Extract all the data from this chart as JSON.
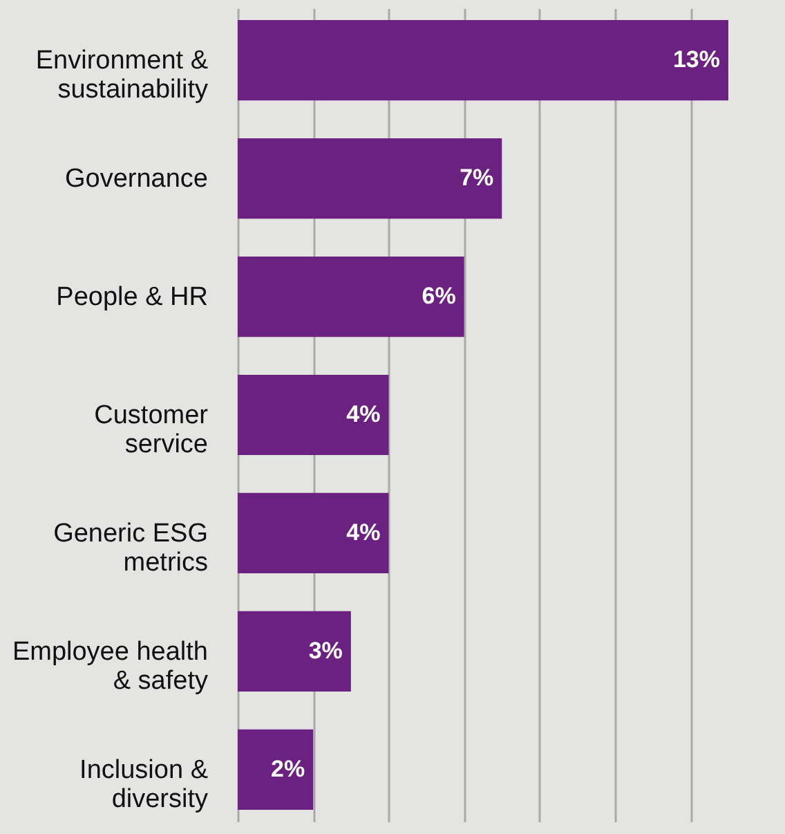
{
  "chart_data": {
    "type": "bar",
    "orientation": "horizontal",
    "categories": [
      "Environment & sustainability",
      "Governance",
      "People & HR",
      "Customer service",
      "Generic ESG metrics",
      "Employee health & safety",
      "Inclusion & diversity"
    ],
    "values": [
      13,
      7,
      6,
      4,
      4,
      3,
      2
    ],
    "value_labels": [
      "13%",
      "7%",
      "6%",
      "4%",
      "4%",
      "3%",
      "2%"
    ],
    "color": "#6b2180",
    "xlim": [
      0,
      13
    ],
    "xticks": [
      {
        "value": 0,
        "label": null
      },
      {
        "value": 2,
        "label": null
      },
      {
        "value": 4,
        "label": null
      },
      {
        "value": 6,
        "label": null
      },
      {
        "value": 8,
        "label": null
      },
      {
        "value": 10,
        "label": null
      },
      {
        "value": 12,
        "label": null
      }
    ],
    "grid": "x",
    "tick_labels": "y"
  }
}
